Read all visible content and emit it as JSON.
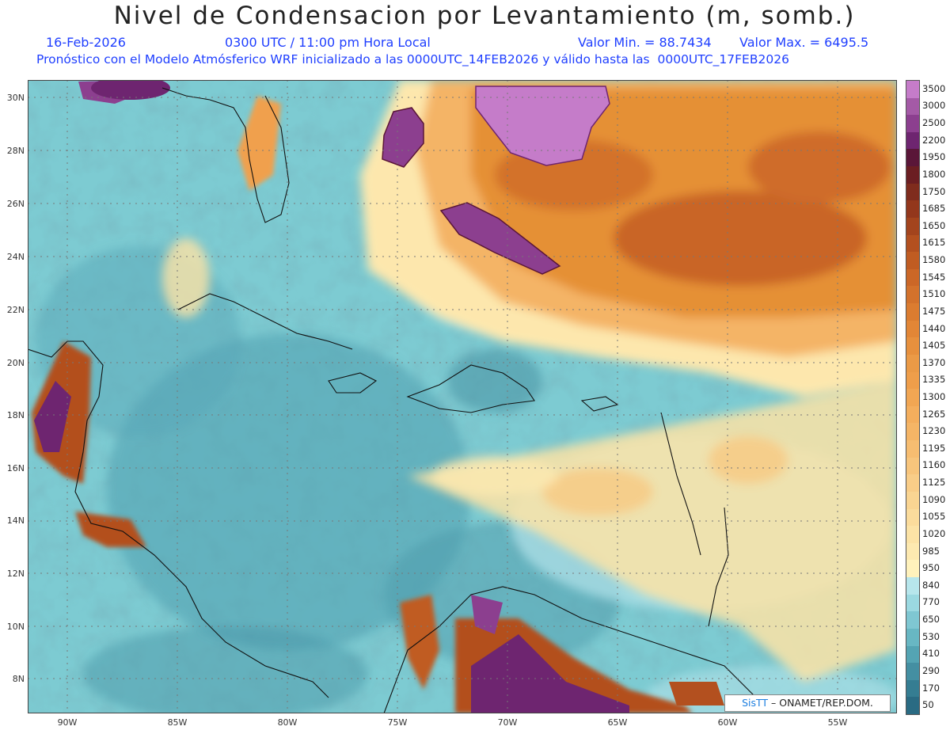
{
  "header": {
    "title": "Nivel de Condensacion por Levantamiento (m, somb.)",
    "date": "16-Feb-2026",
    "time": "0300 UTC / 11:00 pm Hora Local",
    "min_label": "Valor Min. = 88.7434",
    "max_label": "Valor Max. = 6495.5",
    "subtitle": "Pronóstico con el Modelo Atmósferico WRF inicializado a las 0000UTC_14FEB2026 y válido hasta las  0000UTC_17FEB2026"
  },
  "axes": {
    "lat_labels": [
      "30N",
      "28N",
      "26N",
      "24N",
      "22N",
      "20N",
      "18N",
      "16N",
      "14N",
      "12N",
      "10N",
      "8N"
    ],
    "lon_labels": [
      "90W",
      "85W",
      "80W",
      "75W",
      "70W",
      "65W",
      "60W",
      "55W"
    ]
  },
  "colorbar": {
    "labels": [
      "3500",
      "3000",
      "2500",
      "2200",
      "1950",
      "1800",
      "1750",
      "1685",
      "1650",
      "1615",
      "1580",
      "1545",
      "1510",
      "1475",
      "1440",
      "1405",
      "1370",
      "1335",
      "1300",
      "1265",
      "1230",
      "1195",
      "1160",
      "1125",
      "1090",
      "1055",
      "1020",
      "985",
      "950",
      "840",
      "770",
      "650",
      "530",
      "410",
      "290",
      "170",
      "50"
    ],
    "colors": [
      "#c57cc9",
      "#a45aa6",
      "#8c3f8f",
      "#6e2570",
      "#5a1638",
      "#6b1e22",
      "#7f2c1d",
      "#93371c",
      "#a3441d",
      "#b3501f",
      "#c05c22",
      "#cb6727",
      "#d3722c",
      "#db7c30",
      "#e28636",
      "#e7903d",
      "#eb9a46",
      "#ef9e4a",
      "#f1a653",
      "#f4ae5d",
      "#f5b566",
      "#f7bd71",
      "#f8c57c",
      "#f9cd88",
      "#fad592",
      "#fbdc9c",
      "#fce3a6",
      "#fde9b0",
      "#fff2bc",
      "#b7e6ec",
      "#9bd9e1",
      "#7fc7d2",
      "#68b7c3",
      "#54a4b3",
      "#448fa2",
      "#357d92",
      "#2a6b83"
    ]
  },
  "credit": {
    "brand": "SisTT",
    "text": "– ONAMET/REP.DOM."
  }
}
